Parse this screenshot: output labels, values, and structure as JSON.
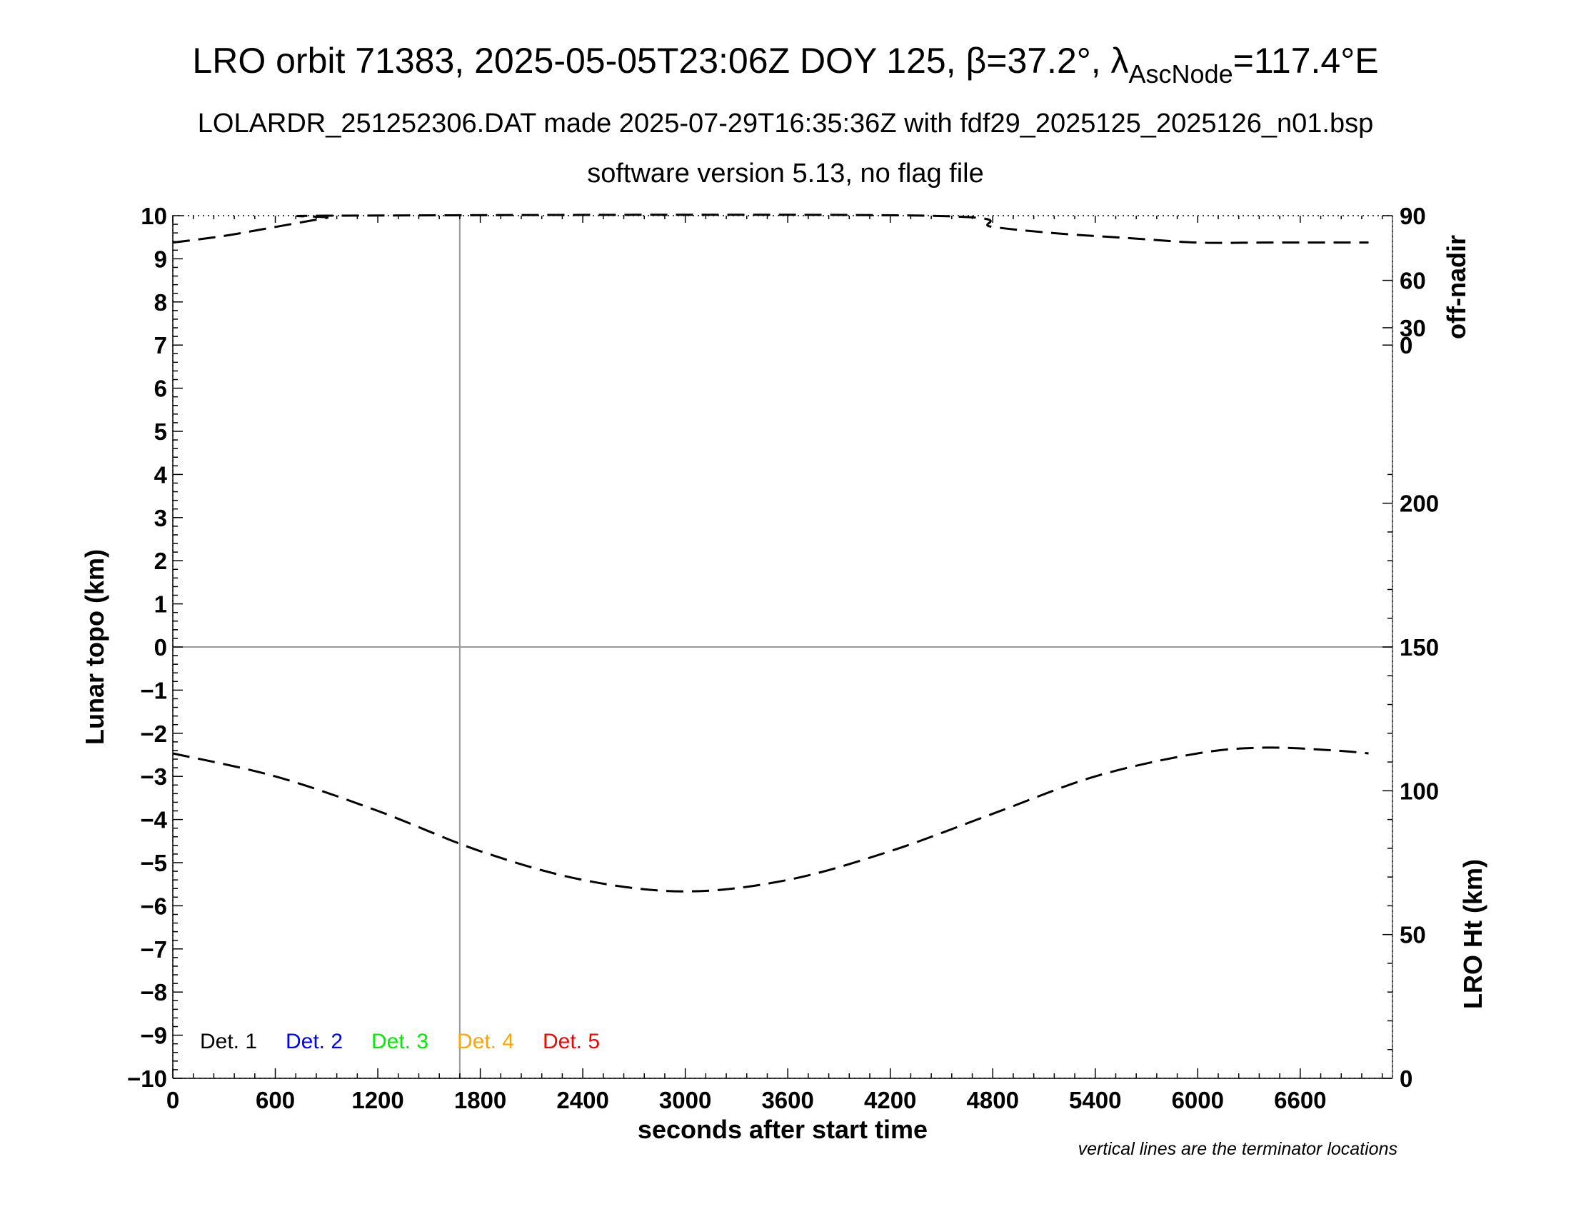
{
  "chart_data": {
    "type": "line",
    "title": {
      "main": "LRO orbit 71383, 2025-05-05T23:06Z DOY 125, β=37.2°, λ",
      "sub": "AscNode",
      "tail": "=117.4°E"
    },
    "subtitle_1": "LOLARDR_251252306.DAT made 2025-07-29T16:35:36Z with fdf29_2025125_2025126_n01.bsp",
    "subtitle_2": "software version 5.13, no flag file",
    "xlabel": "seconds after start time",
    "ylabel_left": "Lunar topo (km)",
    "ylabel_right_top": "off-nadir",
    "ylabel_right_bottom": "LRO Ht (km)",
    "note": "vertical lines are the terminator locations",
    "xlim": [
      0,
      7140
    ],
    "ylim": [
      -10,
      10
    ],
    "x_ticks": [
      0,
      600,
      1200,
      1800,
      2400,
      3000,
      3600,
      4200,
      4800,
      5400,
      6000,
      6600
    ],
    "x_tick_labels": [
      "0",
      "600",
      "1200",
      "1800",
      "2400",
      "3000",
      "3600",
      "4200",
      "4800",
      "5400",
      "6000",
      "6600"
    ],
    "y_ticks": [
      10,
      9,
      8,
      7,
      6,
      5,
      4,
      3,
      2,
      1,
      0,
      -1,
      -2,
      -3,
      -4,
      -5,
      -6,
      -7,
      -8,
      -9,
      -10
    ],
    "y_tick_labels": [
      "10",
      "9",
      "8",
      "7",
      "6",
      "5",
      "4",
      "3",
      "2",
      "1",
      "0",
      "−1",
      "−2",
      "−3",
      "−4",
      "−5",
      "−6",
      "−7",
      "−8",
      "−9",
      "−10"
    ],
    "right_top_ticks": [
      0,
      30,
      60,
      90
    ],
    "right_top_tick_labels": [
      "0",
      "30",
      "60",
      "90"
    ],
    "right_bottom_ylim": [
      0,
      300
    ],
    "right_bottom_ticks": [
      0,
      50,
      100,
      150,
      200
    ],
    "right_bottom_tick_labels": [
      "0",
      "50",
      "100",
      "150",
      "200"
    ],
    "terminator_x": [
      1680
    ],
    "legend": [
      {
        "label": "Det. 1",
        "color": "#000000"
      },
      {
        "label": "Det. 2",
        "color": "#0000ff"
      },
      {
        "label": "Det. 3",
        "color": "#00ee00"
      },
      {
        "label": "Det. 4",
        "color": "#ffa500"
      },
      {
        "label": "Det. 5",
        "color": "#ff0000"
      }
    ],
    "series": [
      {
        "axis": "right_bottom",
        "x": [
          0,
          600,
          1200,
          1800,
          2400,
          3000,
          3600,
          4200,
          4800,
          5400,
          6000,
          6400,
          6800,
          7000
        ],
        "y": [
          113,
          105,
          93,
          79,
          69,
          65,
          69,
          79,
          92,
          105,
          113,
          115,
          114,
          113
        ]
      },
      {
        "axis": "right_top",
        "x": [
          0,
          300,
          600,
          900,
          1000,
          4400,
          4800,
          5200,
          5600,
          6000,
          6400,
          6800,
          7000
        ],
        "y": [
          78,
          81,
          85,
          89,
          90,
          90,
          85,
          82,
          80,
          78,
          78,
          78,
          78
        ]
      }
    ]
  }
}
